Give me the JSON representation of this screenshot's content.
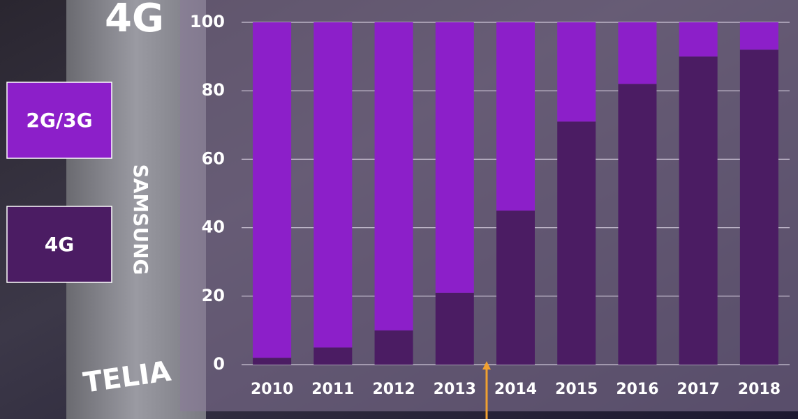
{
  "chart_data": {
    "type": "stacked-bar",
    "categories": [
      "2010",
      "2011",
      "2012",
      "2013",
      "2014",
      "2015",
      "2016",
      "2017",
      "2018"
    ],
    "series": [
      {
        "name": "4G",
        "color": "#4b1c63",
        "values": [
          2,
          5,
          10,
          21,
          45,
          71,
          82,
          90,
          92
        ]
      },
      {
        "name": "2G/3G",
        "color": "#8c1fc9",
        "values": [
          98,
          95,
          90,
          79,
          55,
          29,
          18,
          10,
          8
        ]
      }
    ],
    "ylim": [
      0,
      100
    ],
    "yticks": [
      0,
      20,
      40,
      60,
      80,
      100
    ],
    "grid": true,
    "legend": "left"
  },
  "background": {
    "texts": [
      "4G",
      "SAMSUNG",
      "TELIA"
    ]
  }
}
